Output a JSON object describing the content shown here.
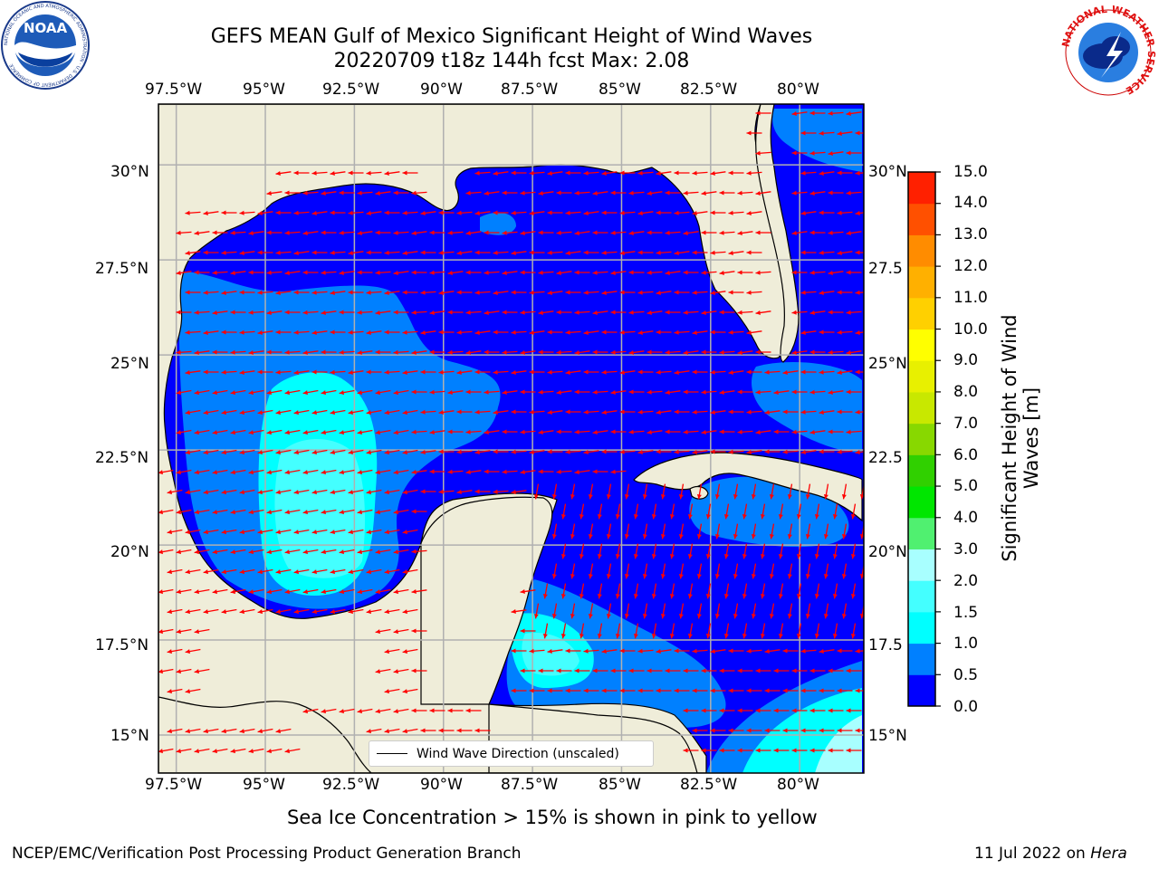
{
  "header": {
    "title_line1": "GEFS MEAN Gulf of Mexico Significant Height of Wind Waves",
    "title_line2": "20220709 t18z 144h fcst   Max: 2.08"
  },
  "logos": {
    "noaa_text": "NOAA",
    "noaa_ring_text": "NATIONAL OCEANIC AND ATMOSPHERIC ADMINISTRATION · U.S. DEPARTMENT OF COMMERCE",
    "nws_ring_text": "NATIONAL WEATHER SERVICE"
  },
  "map": {
    "lon_ticks": [
      "97.5°W",
      "95°W",
      "92.5°W",
      "90°W",
      "87.5°W",
      "85°W",
      "82.5°W",
      "80°W"
    ],
    "lat_ticks_left": [
      "30°N",
      "27.5°N",
      "25°N",
      "22.5°N",
      "20°N",
      "17.5°N",
      "15°N"
    ],
    "lat_ticks_right": [
      "30°N",
      "27.5",
      "25°N",
      "22.5",
      "20°N",
      "17.5",
      "15°N"
    ],
    "lon_range": [
      -98,
      -78.2
    ],
    "lat_range": [
      14,
      31.6
    ],
    "legend_label": "Wind Wave Direction (unscaled)",
    "colors": {
      "land": "#efedd9",
      "wave_0_0.5": "#0000ff",
      "wave_0.5_1": "#0080ff",
      "wave_1_1.5": "#00ffff",
      "wave_1.5_2": "#44ffff",
      "wave_2_3": "#a8ffff",
      "arrow": "#ff0000",
      "grid": "#b0b0b0"
    }
  },
  "colorbar": {
    "labels": [
      "0.0",
      "0.5",
      "1.0",
      "1.5",
      "2.0",
      "3.0",
      "4.0",
      "5.0",
      "6.0",
      "7.0",
      "8.0",
      "9.0",
      "10.0",
      "11.0",
      "12.0",
      "13.0",
      "14.0",
      "15.0"
    ],
    "colors": [
      "#0000ff",
      "#0080ff",
      "#00ffff",
      "#44ffff",
      "#a8ffff",
      "#50f070",
      "#00e600",
      "#30d000",
      "#88d800",
      "#c8e800",
      "#e8f000",
      "#ffff00",
      "#ffd000",
      "#ffb000",
      "#ff8c00",
      "#ff5000",
      "#ff2000"
    ],
    "title": "Significant Height of Wind Waves [m]",
    "title_line1": "Significant Height of Wind",
    "title_line2": "Waves [m]"
  },
  "caption": "Sea Ice Concentration > 15% is shown in pink to yellow",
  "footer": {
    "left": "NCEP/EMC/Verification Post Processing Product Generation Branch",
    "date": "11 Jul 2022 on ",
    "machine": "Hera"
  }
}
